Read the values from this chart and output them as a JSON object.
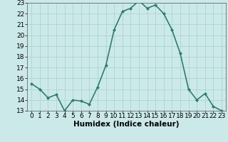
{
  "xlabel": "Humidex (Indice chaleur)",
  "x": [
    0,
    1,
    2,
    3,
    4,
    5,
    6,
    7,
    8,
    9,
    10,
    11,
    12,
    13,
    14,
    15,
    16,
    17,
    18,
    19,
    20,
    21,
    22,
    23
  ],
  "y": [
    15.5,
    15.0,
    14.2,
    14.5,
    13.0,
    14.0,
    13.9,
    13.6,
    15.2,
    17.2,
    20.5,
    22.2,
    22.5,
    23.2,
    22.5,
    22.8,
    22.0,
    20.5,
    18.3,
    15.0,
    14.0,
    14.6,
    13.4,
    13.0
  ],
  "line_color": "#2e7d6e",
  "marker": "D",
  "marker_size": 2.0,
  "background_color": "#cce9e9",
  "grid_color": "#aad4d4",
  "ylim": [
    13,
    23
  ],
  "yticks": [
    13,
    14,
    15,
    16,
    17,
    18,
    19,
    20,
    21,
    22,
    23
  ],
  "xticks": [
    0,
    1,
    2,
    3,
    4,
    5,
    6,
    7,
    8,
    9,
    10,
    11,
    12,
    13,
    14,
    15,
    16,
    17,
    18,
    19,
    20,
    21,
    22,
    23
  ],
  "tick_fontsize": 6.5,
  "label_fontsize": 7.5,
  "line_width": 1.2
}
